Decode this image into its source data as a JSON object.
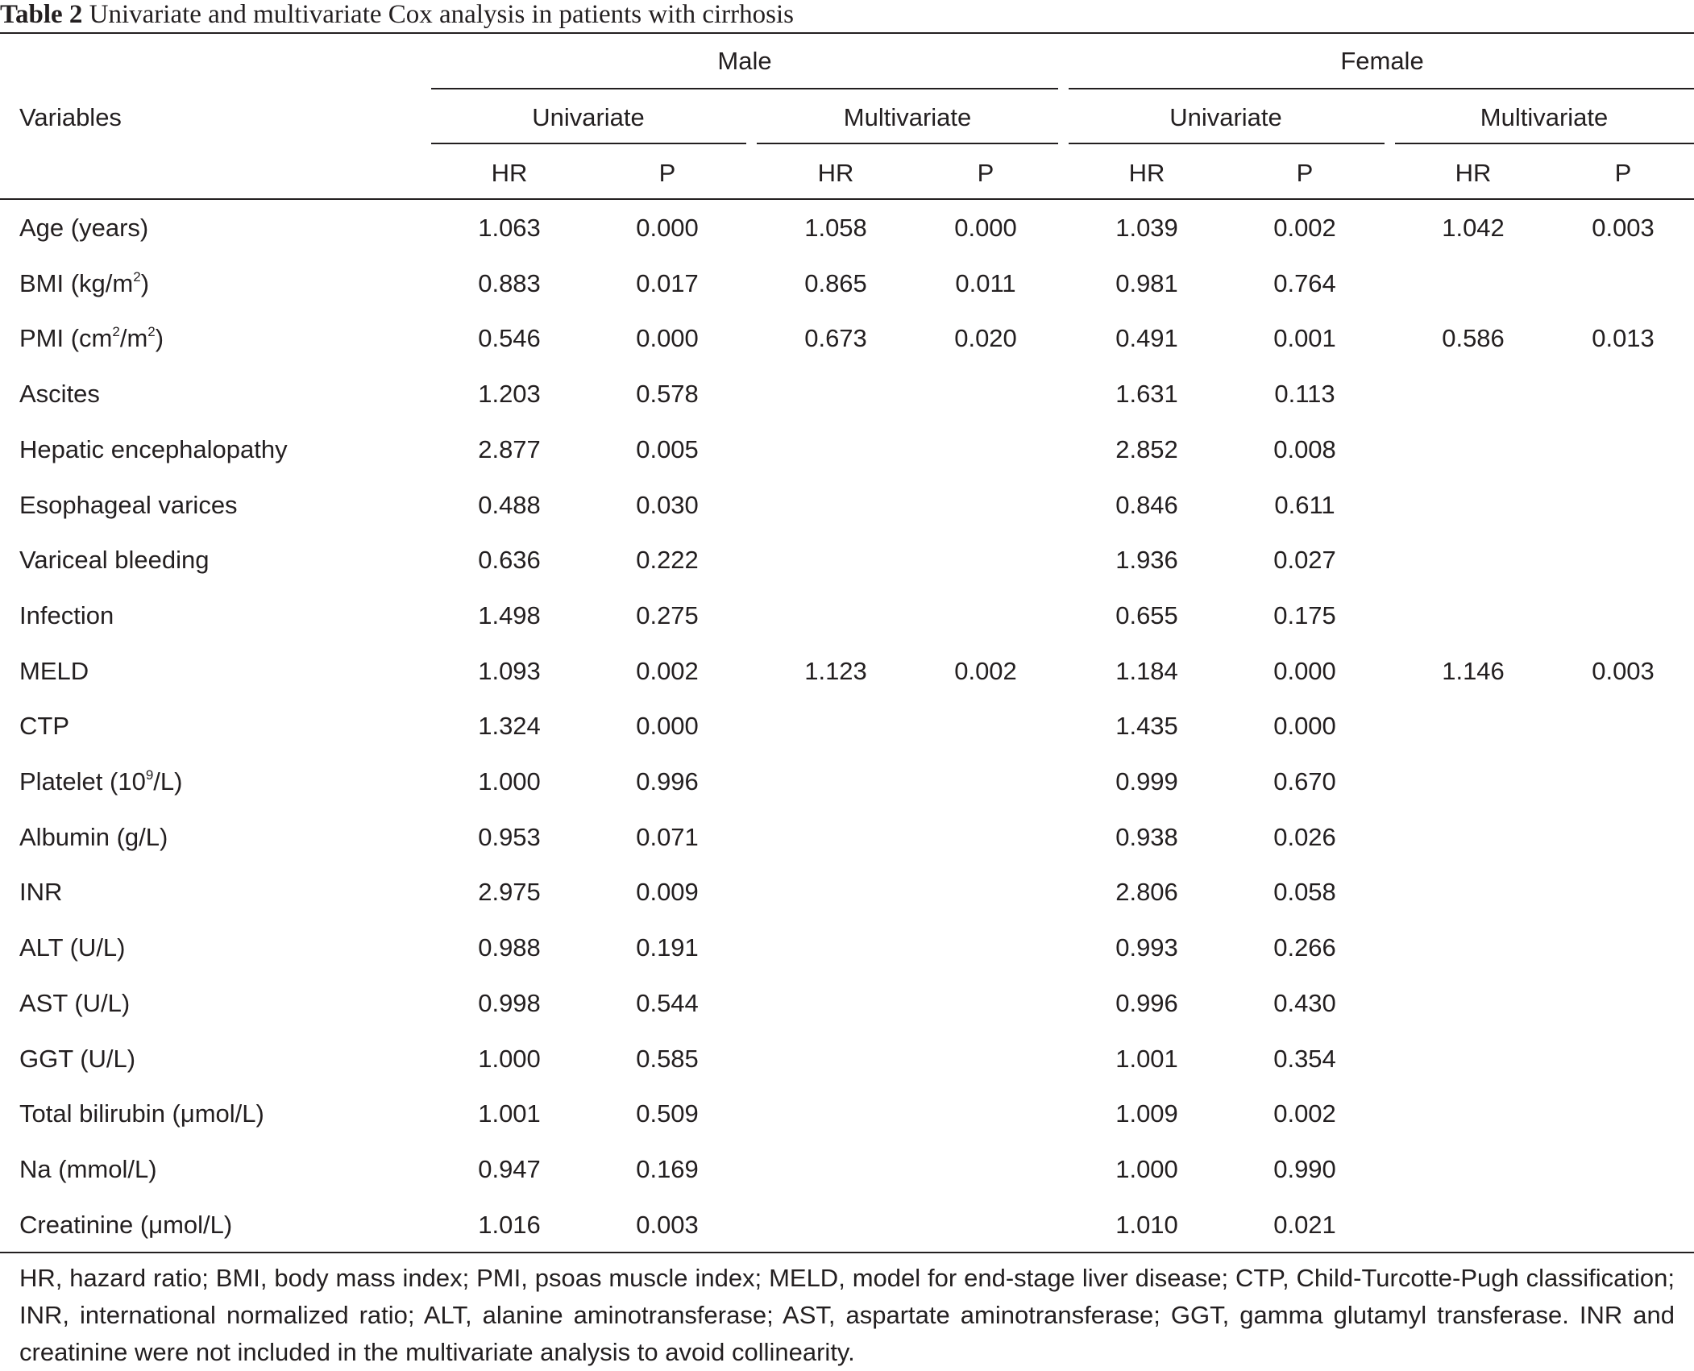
{
  "table": {
    "label": "Table 2",
    "caption": "Univariate and multivariate Cox analysis in patients with cirrhosis",
    "header": {
      "variables": "Variables",
      "groups": [
        "Male",
        "Female"
      ],
      "analyses": [
        "Univariate",
        "Multivariate",
        "Univariate",
        "Multivariate"
      ],
      "stats": [
        "HR",
        "P",
        "HR",
        "P",
        "HR",
        "P",
        "HR",
        "P"
      ]
    },
    "rows": [
      {
        "name": "Age (years)",
        "cells": [
          "1.063",
          "0.000",
          "1.058",
          "0.000",
          "1.039",
          "0.002",
          "1.042",
          "0.003"
        ]
      },
      {
        "name": "BMI (kg/m",
        "sup": "2",
        "tail": ")",
        "cells": [
          "0.883",
          "0.017",
          "0.865",
          "0.011",
          "0.981",
          "0.764",
          "",
          ""
        ]
      },
      {
        "name": "PMI (cm",
        "sup": "2",
        "mid": "/m",
        "sup2": "2",
        "tail": ")",
        "cells": [
          "0.546",
          "0.000",
          "0.673",
          "0.020",
          "0.491",
          "0.001",
          "0.586",
          "0.013"
        ]
      },
      {
        "name": "Ascites",
        "cells": [
          "1.203",
          "0.578",
          "",
          "",
          "1.631",
          "0.113",
          "",
          ""
        ]
      },
      {
        "name": "Hepatic encephalopathy",
        "cells": [
          "2.877",
          "0.005",
          "",
          "",
          "2.852",
          "0.008",
          "",
          ""
        ]
      },
      {
        "name": "Esophageal varices",
        "cells": [
          "0.488",
          "0.030",
          "",
          "",
          "0.846",
          "0.611",
          "",
          ""
        ]
      },
      {
        "name": "Variceal bleeding",
        "cells": [
          "0.636",
          "0.222",
          "",
          "",
          "1.936",
          "0.027",
          "",
          ""
        ]
      },
      {
        "name": "Infection",
        "cells": [
          "1.498",
          "0.275",
          "",
          "",
          "0.655",
          "0.175",
          "",
          ""
        ]
      },
      {
        "name": "MELD",
        "cells": [
          "1.093",
          "0.002",
          "1.123",
          "0.002",
          "1.184",
          "0.000",
          "1.146",
          "0.003"
        ]
      },
      {
        "name": "CTP",
        "cells": [
          "1.324",
          "0.000",
          "",
          "",
          "1.435",
          "0.000",
          "",
          ""
        ]
      },
      {
        "name": "Platelet (10",
        "sup": "9",
        "tail": "/L)",
        "cells": [
          "1.000",
          "0.996",
          "",
          "",
          "0.999",
          "0.670",
          "",
          ""
        ]
      },
      {
        "name": "Albumin (g/L)",
        "cells": [
          "0.953",
          "0.071",
          "",
          "",
          "0.938",
          "0.026",
          "",
          ""
        ]
      },
      {
        "name": "INR",
        "cells": [
          "2.975",
          "0.009",
          "",
          "",
          "2.806",
          "0.058",
          "",
          ""
        ]
      },
      {
        "name": "ALT (U/L)",
        "cells": [
          "0.988",
          "0.191",
          "",
          "",
          "0.993",
          "0.266",
          "",
          ""
        ]
      },
      {
        "name": "AST (U/L)",
        "cells": [
          "0.998",
          "0.544",
          "",
          "",
          "0.996",
          "0.430",
          "",
          ""
        ]
      },
      {
        "name": "GGT (U/L)",
        "cells": [
          "1.000",
          "0.585",
          "",
          "",
          "1.001",
          "0.354",
          "",
          ""
        ]
      },
      {
        "name": "Total bilirubin (μmol/L)",
        "cells": [
          "1.001",
          "0.509",
          "",
          "",
          "1.009",
          "0.002",
          "",
          ""
        ]
      },
      {
        "name": "Na (mmol/L)",
        "cells": [
          "0.947",
          "0.169",
          "",
          "",
          "1.000",
          "0.990",
          "",
          ""
        ]
      },
      {
        "name": "Creatinine (μmol/L)",
        "cells": [
          "1.016",
          "0.003",
          "",
          "",
          "1.010",
          "0.021",
          "",
          ""
        ]
      }
    ],
    "footnote": "HR, hazard ratio; BMI, body mass index; PMI, psoas muscle index; MELD, model for end-stage liver disease; CTP, Child-Turcotte-Pugh classification; INR, international normalized ratio; ALT, alanine aminotransferase; AST, aspartate aminotransferase; GGT, gamma glutamyl transferase. INR and creatinine were not included in the multivariate analysis to avoid collinearity."
  }
}
